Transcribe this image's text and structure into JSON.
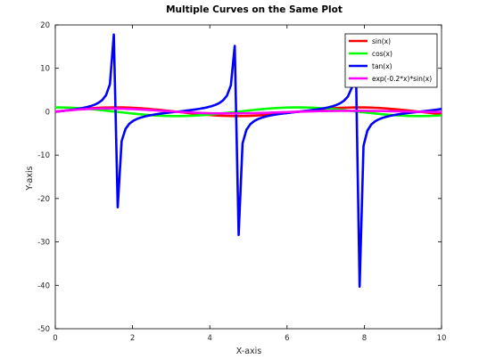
{
  "chart_data": {
    "type": "line",
    "title": "Multiple Curves on the Same Plot",
    "xlabel": "X-axis",
    "ylabel": "Y-axis",
    "xlim": [
      0,
      10
    ],
    "ylim": [
      -50,
      20
    ],
    "xticks": [
      0,
      2,
      4,
      6,
      8,
      10
    ],
    "xtick_labels": [
      "0",
      "2",
      "4",
      "6",
      "8",
      "10"
    ],
    "yticks": [
      20,
      10,
      0,
      -10,
      -20,
      -30,
      -40,
      -50
    ],
    "ytick_labels": [
      "20",
      "10",
      "0",
      "-10",
      "-20",
      "-30",
      "-40",
      "-50"
    ],
    "grid": false,
    "legend_position": "top-right",
    "x": [
      0,
      0.101,
      0.202,
      0.303,
      0.404,
      0.505,
      0.606,
      0.707,
      0.808,
      0.909,
      1.01,
      1.111,
      1.212,
      1.313,
      1.414,
      1.515,
      1.616,
      1.717,
      1.818,
      1.919,
      2.02,
      2.121,
      2.222,
      2.323,
      2.424,
      2.525,
      2.626,
      2.727,
      2.828,
      2.929,
      3.03,
      3.131,
      3.232,
      3.333,
      3.434,
      3.535,
      3.636,
      3.737,
      3.838,
      3.939,
      4.04,
      4.141,
      4.242,
      4.343,
      4.444,
      4.545,
      4.646,
      4.747,
      4.848,
      4.949,
      5.051,
      5.152,
      5.253,
      5.354,
      5.455,
      5.556,
      5.657,
      5.758,
      5.859,
      5.96,
      6.061,
      6.162,
      6.263,
      6.364,
      6.465,
      6.566,
      6.667,
      6.768,
      6.869,
      6.97,
      7.071,
      7.172,
      7.273,
      7.374,
      7.475,
      7.576,
      7.677,
      7.778,
      7.879,
      7.98,
      8.081,
      8.182,
      8.283,
      8.384,
      8.485,
      8.586,
      8.687,
      8.788,
      8.889,
      8.99,
      9.091,
      9.192,
      9.293,
      9.394,
      9.495,
      9.596,
      9.697,
      9.798,
      9.899,
      10
    ],
    "series": [
      {
        "name": "sin(x)",
        "color": "#ff0000",
        "values": [
          0,
          0.101,
          0.201,
          0.298,
          0.393,
          0.484,
          0.57,
          0.65,
          0.723,
          0.789,
          0.847,
          0.896,
          0.937,
          0.967,
          0.988,
          0.998,
          0.999,
          0.989,
          0.969,
          0.94,
          0.901,
          0.853,
          0.795,
          0.73,
          0.657,
          0.578,
          0.493,
          0.403,
          0.308,
          0.211,
          0.111,
          0.01,
          -0.091,
          -0.19,
          -0.288,
          -0.384,
          -0.476,
          -0.562,
          -0.643,
          -0.717,
          -0.784,
          -0.842,
          -0.891,
          -0.933,
          -0.964,
          -0.985,
          -0.998,
          -0.999,
          -0.991,
          -0.972,
          -0.944,
          -0.906,
          -0.859,
          -0.802,
          -0.738,
          -0.666,
          -0.587,
          -0.502,
          -0.413,
          -0.318,
          -0.221,
          -0.121,
          -0.02,
          0.081,
          0.181,
          0.279,
          0.374,
          0.466,
          0.554,
          0.636,
          0.711,
          0.778,
          0.837,
          0.887,
          0.929,
          0.961,
          0.983,
          0.997,
          0.999,
          0.992,
          0.975,
          0.948,
          0.911,
          0.865,
          0.809,
          0.745,
          0.674,
          0.596,
          0.512,
          0.422,
          0.328,
          0.231,
          0.132,
          0.031,
          -0.07,
          -0.171,
          -0.269,
          -0.365,
          -0.457,
          -0.544
        ]
      },
      {
        "name": "cos(x)",
        "color": "#00ff00",
        "values": [
          1,
          0.995,
          0.98,
          0.954,
          0.919,
          0.875,
          0.822,
          0.76,
          0.691,
          0.614,
          0.532,
          0.444,
          0.351,
          0.255,
          0.156,
          0.056,
          -0.045,
          -0.146,
          -0.245,
          -0.341,
          -0.434,
          -0.522,
          -0.606,
          -0.684,
          -0.754,
          -0.816,
          -0.87,
          -0.915,
          -0.951,
          -0.978,
          -0.994,
          -1,
          -0.996,
          -0.982,
          -0.958,
          -0.923,
          -0.88,
          -0.827,
          -0.766,
          -0.697,
          -0.621,
          -0.539,
          -0.452,
          -0.361,
          -0.265,
          -0.165,
          -0.066,
          0.035,
          0.136,
          0.235,
          0.331,
          0.424,
          0.512,
          0.597,
          0.675,
          0.747,
          0.81,
          0.865,
          0.911,
          0.948,
          0.975,
          0.993,
          1,
          0.997,
          0.983,
          0.96,
          0.928,
          0.885,
          0.833,
          0.772,
          0.703,
          0.628,
          0.546,
          0.46,
          0.37,
          0.275,
          0.175,
          0.076,
          -0.025,
          -0.126,
          -0.225,
          -0.322,
          -0.415,
          -0.504,
          -0.589,
          -0.668,
          -0.741,
          -0.805,
          -0.861,
          -0.907,
          -0.945,
          -0.973,
          -0.991,
          -1,
          -0.998,
          -0.985,
          -0.963,
          -0.931,
          -0.89,
          -0.839
        ]
      },
      {
        "name": "tan(x)",
        "color": "#0000ff",
        "values": [
          0,
          0.101,
          0.205,
          0.313,
          0.428,
          0.553,
          0.693,
          0.855,
          1.046,
          1.283,
          1.59,
          2.018,
          2.668,
          3.796,
          6.338,
          17.782,
          -22.008,
          -6.78,
          -3.95,
          -2.754,
          -2.075,
          -1.632,
          -1.313,
          -1.067,
          -0.871,
          -0.708,
          -0.567,
          -0.441,
          -0.324,
          -0.216,
          -0.112,
          -0.011,
          0.091,
          0.193,
          0.301,
          0.416,
          0.541,
          0.68,
          0.84,
          1.028,
          1.261,
          1.562,
          1.979,
          2.609,
          3.693,
          6.079,
          15.166,
          -28.379,
          -7.3,
          -4.142,
          -2.85,
          -2.135,
          -1.675,
          -1.344,
          -1.093,
          -0.891,
          -0.725,
          -0.581,
          -0.454,
          -0.336,
          -0.227,
          -0.122,
          -0.02,
          0.081,
          0.183,
          0.29,
          0.403,
          0.527,
          0.665,
          0.824,
          1.011,
          1.24,
          1.532,
          1.939,
          2.542,
          3.492,
          5.566,
          13.041,
          -40.299,
          -7.851,
          -4.325,
          -2.944,
          -2.194,
          -1.714,
          -1.373,
          -1.115,
          -0.911,
          -0.74,
          -0.595,
          -0.466,
          -0.347,
          -0.237,
          -0.133,
          -0.031,
          0.07,
          0.173,
          0.279,
          0.392,
          0.514,
          0.649
        ]
      },
      {
        "name": "exp(-0.2*x)*sin(x)",
        "color": "#ff00ff",
        "values": [
          0,
          0.099,
          0.193,
          0.28,
          0.362,
          0.437,
          0.505,
          0.564,
          0.614,
          0.658,
          0.691,
          0.716,
          0.733,
          0.741,
          0.74,
          0.737,
          0.724,
          0.703,
          0.675,
          0.639,
          0.601,
          0.557,
          0.509,
          0.458,
          0.405,
          0.35,
          0.293,
          0.234,
          0.175,
          0.117,
          0.061,
          0.005,
          -0.048,
          -0.097,
          -0.145,
          -0.19,
          -0.23,
          -0.267,
          -0.299,
          -0.326,
          -0.351,
          -0.371,
          -0.382,
          -0.392,
          -0.396,
          -0.396,
          -0.392,
          -0.384,
          -0.374,
          -0.36,
          -0.343,
          -0.324,
          -0.302,
          -0.276,
          -0.25,
          -0.221,
          -0.19,
          -0.159,
          -0.128,
          -0.097,
          -0.066,
          -0.035,
          -0.006,
          0.023,
          0.05,
          0.075,
          0.099,
          0.121,
          0.141,
          0.158,
          0.172,
          0.185,
          0.195,
          0.203,
          0.208,
          0.211,
          0.212,
          0.211,
          0.207,
          0.202,
          0.195,
          0.185,
          0.175,
          0.163,
          0.149,
          0.134,
          0.119,
          0.103,
          0.087,
          0.07,
          0.053,
          0.036,
          0.02,
          0.005,
          -0.01,
          -0.025,
          -0.038,
          -0.051,
          -0.062,
          -0.074
        ]
      }
    ]
  }
}
